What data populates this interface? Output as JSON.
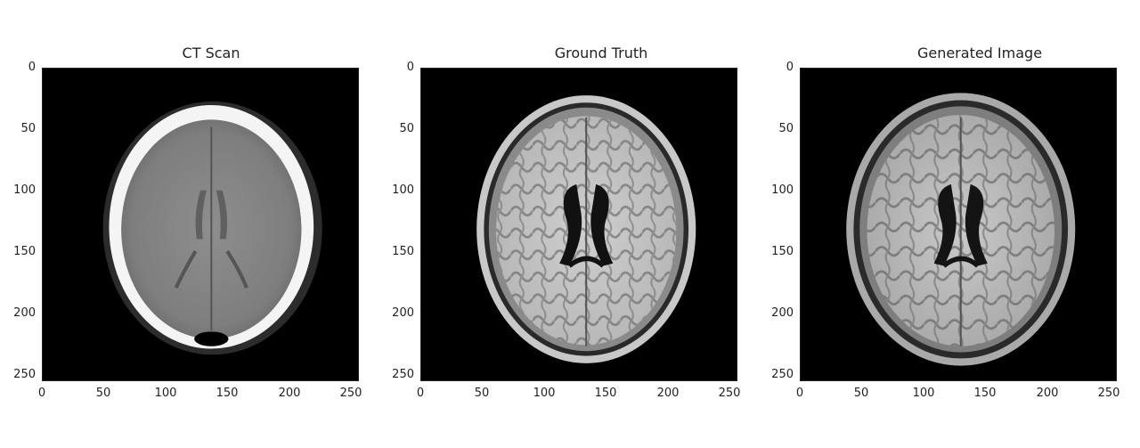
{
  "panels": [
    {
      "id": "ct",
      "title": "CT Scan"
    },
    {
      "id": "gt",
      "title": "Ground Truth"
    },
    {
      "id": "gen",
      "title": "Generated Image"
    }
  ],
  "axes": {
    "x_ticks": [
      "0",
      "50",
      "100",
      "150",
      "200",
      "250"
    ],
    "y_ticks": [
      "0",
      "50",
      "100",
      "150",
      "200",
      "250"
    ],
    "range": [
      0,
      256
    ]
  },
  "colors": {
    "background": "#000000",
    "ct_skull": "#f4f4f4",
    "ct_brain": "#8a8a8a",
    "mri_skin": "#c9c9c9",
    "mri_white_matter": "#d2d2d2",
    "mri_grey_matter": "#7a7a7a",
    "ventricle": "#101010"
  }
}
